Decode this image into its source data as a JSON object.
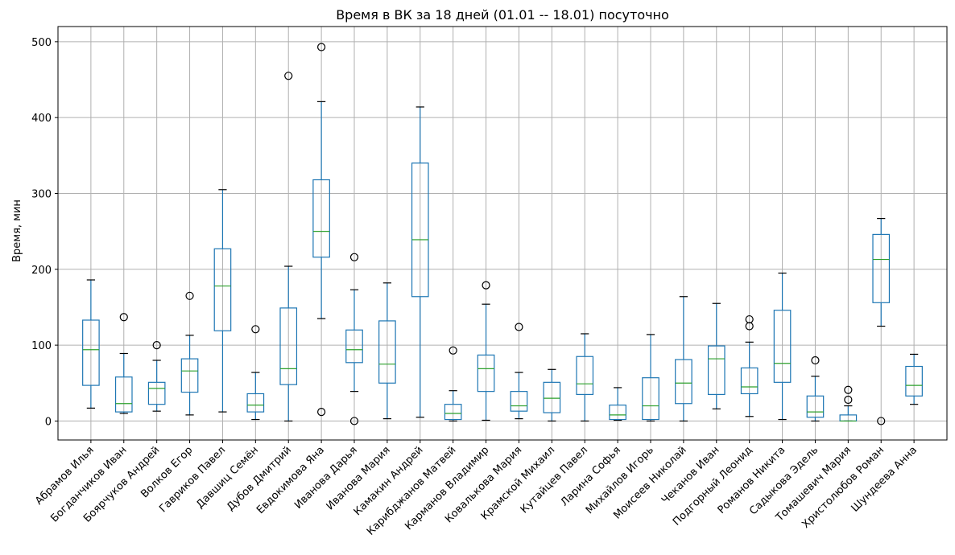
{
  "chart_data": {
    "type": "boxplot",
    "title": "Время в ВК за 18 дней (01.01 -- 18.01) посуточно",
    "xlabel": "",
    "ylabel": "Время, мин",
    "ylim": [
      -25,
      520
    ],
    "yticks": [
      0,
      100,
      200,
      300,
      400,
      500
    ],
    "grid": true,
    "categories": [
      "Абрамов Илья",
      "Богданчиков Иван",
      "Боярчуков Андрей",
      "Волков Егор",
      "Гавриков Павел",
      "Давшиц Семён",
      "Дубов Дмитрий",
      "Евдокимова Яна",
      "Иванова Дарья",
      "Иванова Мария",
      "Камакин Андрей",
      "Карибджанов Матвей",
      "Карманов Владимир",
      "Ковалькова Мария",
      "Крамской Михаил",
      "Кутайцев Павел",
      "Ларина Софья",
      "Михайлов Игорь",
      "Моисеев Николай",
      "Чеканов Иван",
      "Подгорный Леонид",
      "Романов Никита",
      "Садыкова Эдель",
      "Томашевич Мария",
      "Христолюбов Роман",
      "Шундеева Анна"
    ],
    "boxes": [
      {
        "whislo": 17,
        "q1": 47,
        "med": 94,
        "q3": 133,
        "whishi": 186,
        "fliers": []
      },
      {
        "whislo": 10,
        "q1": 12,
        "med": 23,
        "q3": 58,
        "whishi": 89,
        "fliers": [
          137
        ]
      },
      {
        "whislo": 13,
        "q1": 22,
        "med": 43,
        "q3": 51,
        "whishi": 80,
        "fliers": [
          100
        ]
      },
      {
        "whislo": 8,
        "q1": 38,
        "med": 66,
        "q3": 82,
        "whishi": 113,
        "fliers": [
          165
        ]
      },
      {
        "whislo": 12,
        "q1": 119,
        "med": 178,
        "q3": 227,
        "whishi": 305,
        "fliers": []
      },
      {
        "whislo": 2,
        "q1": 12,
        "med": 21,
        "q3": 36,
        "whishi": 64,
        "fliers": [
          121
        ]
      },
      {
        "whislo": 0,
        "q1": 48,
        "med": 69,
        "q3": 149,
        "whishi": 204,
        "fliers": [
          455
        ]
      },
      {
        "whislo": 135,
        "q1": 216,
        "med": 250,
        "q3": 318,
        "whishi": 421,
        "fliers": [
          12,
          493
        ]
      },
      {
        "whislo": 39,
        "q1": 77,
        "med": 94,
        "q3": 120,
        "whishi": 173,
        "fliers": [
          0,
          216
        ]
      },
      {
        "whislo": 3,
        "q1": 50,
        "med": 75,
        "q3": 132,
        "whishi": 182,
        "fliers": []
      },
      {
        "whislo": 5,
        "q1": 164,
        "med": 239,
        "q3": 340,
        "whishi": 414,
        "fliers": []
      },
      {
        "whislo": 0,
        "q1": 2,
        "med": 10,
        "q3": 22,
        "whishi": 40,
        "fliers": [
          93
        ]
      },
      {
        "whislo": 1,
        "q1": 39,
        "med": 69,
        "q3": 87,
        "whishi": 154,
        "fliers": [
          179
        ]
      },
      {
        "whislo": 3,
        "q1": 13,
        "med": 20,
        "q3": 39,
        "whishi": 64,
        "fliers": [
          124
        ]
      },
      {
        "whislo": 0,
        "q1": 11,
        "med": 30,
        "q3": 51,
        "whishi": 68,
        "fliers": []
      },
      {
        "whislo": 0,
        "q1": 35,
        "med": 49,
        "q3": 85,
        "whishi": 115,
        "fliers": []
      },
      {
        "whislo": 1,
        "q1": 2,
        "med": 8,
        "q3": 21,
        "whishi": 44,
        "fliers": []
      },
      {
        "whislo": 0,
        "q1": 2,
        "med": 20,
        "q3": 57,
        "whishi": 114,
        "fliers": []
      },
      {
        "whislo": 0,
        "q1": 23,
        "med": 50,
        "q3": 81,
        "whishi": 164,
        "fliers": []
      },
      {
        "whislo": 16,
        "q1": 35,
        "med": 82,
        "q3": 99,
        "whishi": 155,
        "fliers": []
      },
      {
        "whislo": 6,
        "q1": 36,
        "med": 45,
        "q3": 70,
        "whishi": 104,
        "fliers": [
          125,
          134
        ]
      },
      {
        "whislo": 2,
        "q1": 51,
        "med": 76,
        "q3": 146,
        "whishi": 195,
        "fliers": []
      },
      {
        "whislo": 0,
        "q1": 5,
        "med": 12,
        "q3": 33,
        "whishi": 59,
        "fliers": [
          80
        ]
      },
      {
        "whislo": 0,
        "q1": 0,
        "med": 0,
        "q3": 8,
        "whishi": 20,
        "fliers": [
          28,
          41
        ]
      },
      {
        "whislo": 125,
        "q1": 156,
        "med": 213,
        "q3": 246,
        "whishi": 267,
        "fliers": [
          0
        ]
      },
      {
        "whislo": 22,
        "q1": 33,
        "med": 47,
        "q3": 72,
        "whishi": 88,
        "fliers": []
      }
    ],
    "colors": {
      "box": "#1f77b4",
      "median": "#2ca02c",
      "cap": "#000000",
      "flier": "#000000",
      "grid": "#b0b0b0"
    }
  }
}
